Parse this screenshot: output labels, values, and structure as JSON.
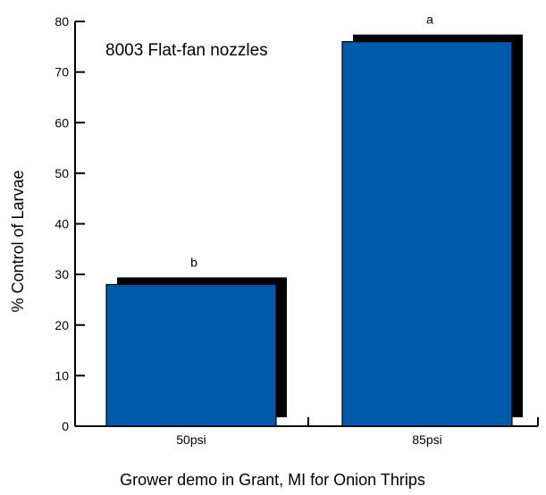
{
  "chart_data": {
    "type": "bar",
    "annotation": "8003 Flat-fan nozzles",
    "xlabel": "Grower demo in Grant, MI for Onion Thrips",
    "ylabel": "% Control of Larvae",
    "ylim": [
      0,
      80
    ],
    "yticks": [
      "0",
      "10",
      "20",
      "30",
      "40",
      "50",
      "60",
      "70",
      "80"
    ],
    "categories": [
      "50psi",
      "85psi"
    ],
    "values": [
      28,
      76
    ],
    "letters": [
      "b",
      "a"
    ],
    "bar_color": "#005aab",
    "shadow_color": "#000000",
    "grid": false
  }
}
